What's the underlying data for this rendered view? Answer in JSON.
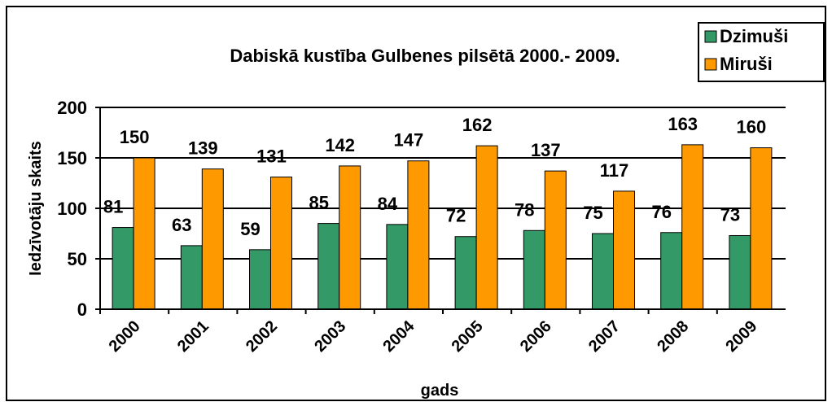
{
  "chart_data": {
    "type": "bar",
    "title": "Dabiskā kustība Gulbenes pilsētā 2000.- 2009.",
    "x_label": "gads",
    "y_label": "Iedzīvotāju skaits",
    "categories": [
      "2000",
      "2001",
      "2002",
      "2003",
      "2004",
      "2005",
      "2006",
      "2007",
      "2008",
      "2009"
    ],
    "series": [
      {
        "name": "Dzimuši",
        "color": "#339966",
        "values": [
          81,
          63,
          59,
          85,
          84,
          72,
          78,
          75,
          76,
          73
        ]
      },
      {
        "name": "Miruši",
        "color": "#ff9900",
        "values": [
          150,
          139,
          131,
          142,
          147,
          162,
          137,
          117,
          163,
          160
        ]
      }
    ],
    "ylim": [
      0,
      200
    ],
    "yticks": [
      0,
      50,
      100,
      150,
      200
    ],
    "grid": true,
    "legend": "top-right"
  }
}
